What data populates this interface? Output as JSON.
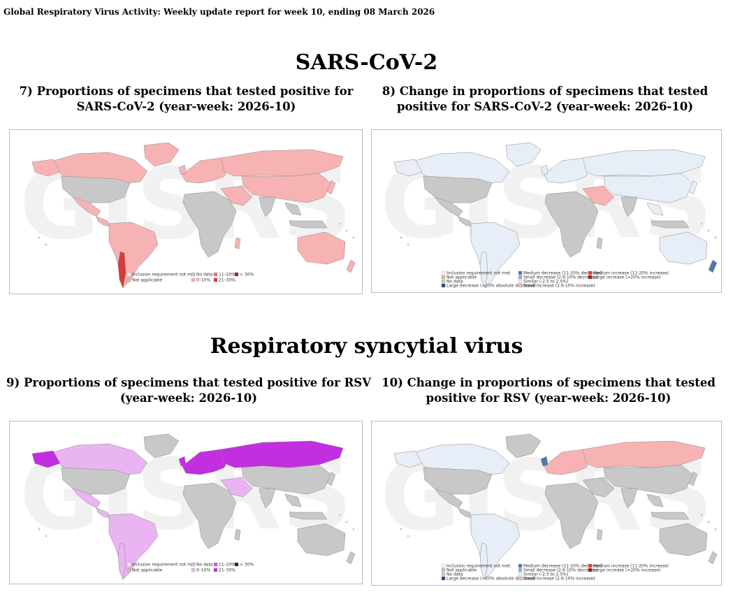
{
  "header": "Global Respiratory Virus Activity: Weekly update report for week 10, ending 08 March 2026",
  "sections": {
    "sars": "SARS-CoV-2",
    "rsv": "Respiratory syncytial virus"
  },
  "panels": {
    "p7": {
      "line1": "7) Proportions of specimens that tested positive for",
      "line2": "SARS-CoV-2 (year-week: 2026-10)"
    },
    "p8": {
      "line1": "8) Change in proportions of specimens that tested",
      "line2": "positive for SARS-CoV-2 (year-week: 2026-10)"
    },
    "p9": {
      "line1": "9) Proportions of specimens that tested positive for RSV",
      "line2": "(year-week: 2026-10)"
    },
    "p10": {
      "line1": "10) Change in proportions of specimens that tested",
      "line2": "positive for RSV (year-week: 2026-10)"
    }
  },
  "watermark": "GISRS",
  "legend_proportion": {
    "inclusion": "Inclusion requirement not met",
    "not_applicable": "Not applicable",
    "no_data": "No data",
    "b0_10": "0–10%",
    "b11_20": "11–20%",
    "b21_30": "21–30%",
    "b30": "> 30%"
  },
  "legend_change": {
    "inclusion": "Inclusion requirement not met",
    "not_applicable": "Not applicable",
    "no_data": "No data",
    "large_decrease": "Large decrease (>20% absolute decrease)",
    "medium_decrease": "Medium decrease (11-20% decrease)",
    "small_decrease": "Small decrease (2.6-10% decrease)",
    "similar": "Similar (-2.5 to 2.5%)",
    "small_increase": "Small increase (2.6-10% increase)",
    "medium_increase": "Medium increase (11-20% increase)",
    "large_increase": "Large increase (>20% increase)"
  },
  "colors": {
    "no_data": "#c8c8c8",
    "inclusion": "#f4f4f4",
    "not_applicable": "#c9bca6",
    "sars_0_10": "#f7b3b3",
    "sars_11_20": "#ee6f6f",
    "sars_21_30": "#d83a3a",
    "sars_30": "#9a1c1c",
    "rsv_0_10": "#eab4f2",
    "rsv_11_20": "#d05ce0",
    "rsv_21_30": "#c22ee0",
    "rsv_30": "#4a1040",
    "large_decrease": "#254a7a",
    "medium_decrease": "#4b7aa6",
    "small_decrease": "#8fb1cf",
    "similar": "#e8eef7",
    "small_increase": "#f7b3b3",
    "medium_increase": "#e23b3b",
    "large_increase": "#a31515"
  }
}
